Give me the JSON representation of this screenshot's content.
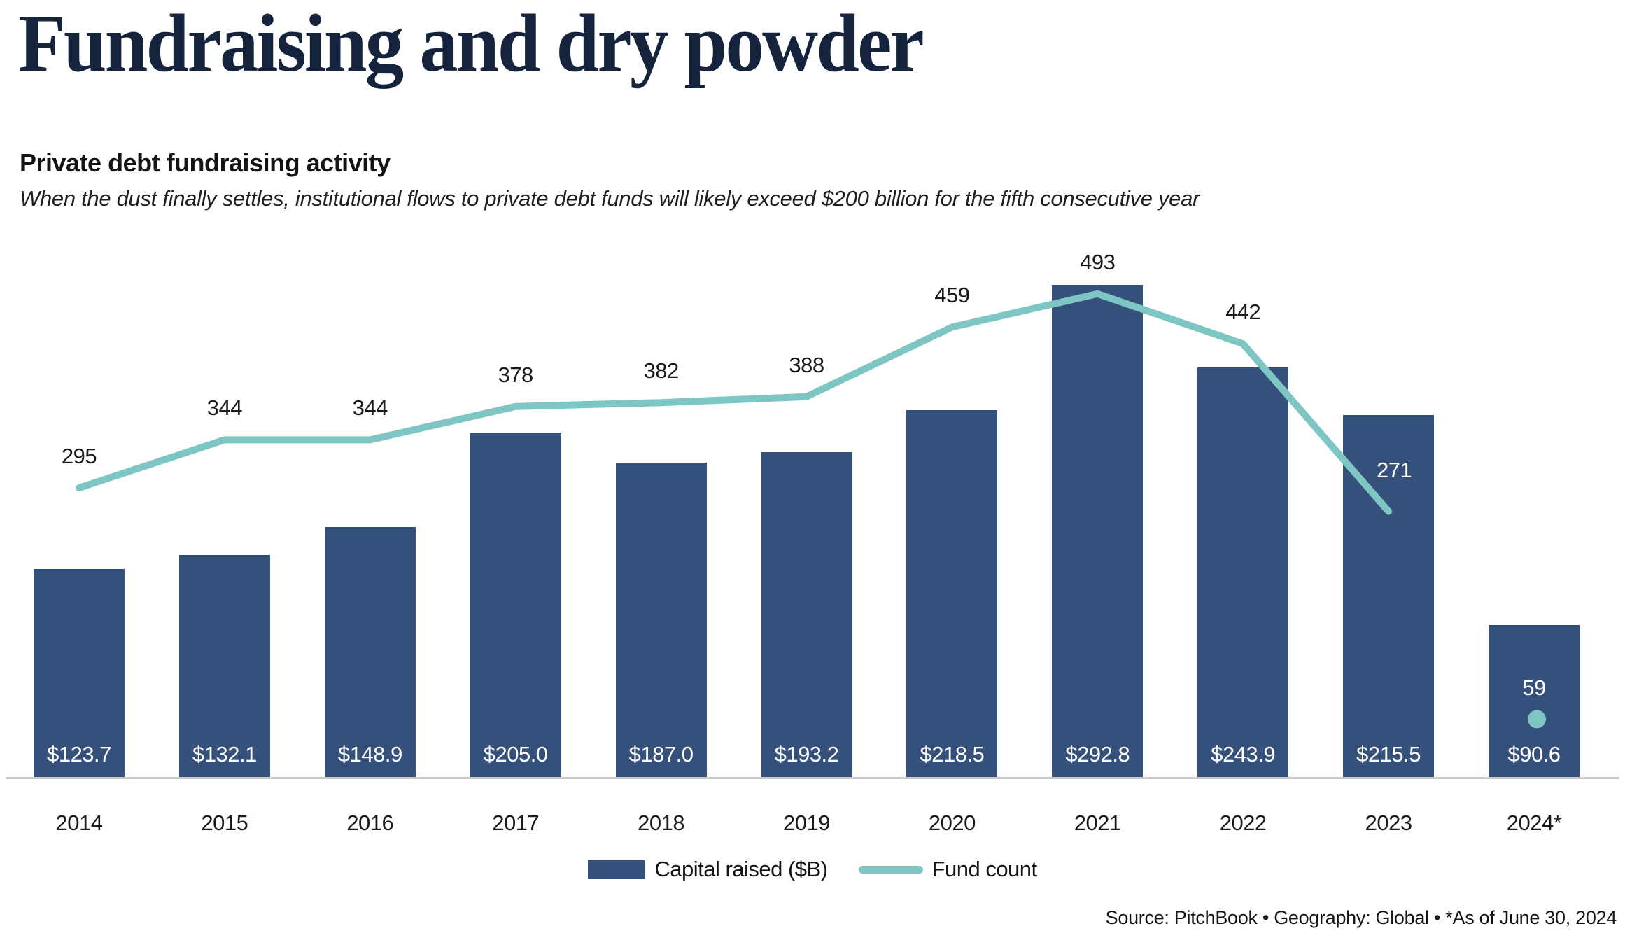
{
  "header": {
    "title": "Fundraising and dry powder",
    "subtitle": "Private debt fundraising activity",
    "description": "When the dust finally settles, institutional flows to private debt funds will likely exceed $200 billion for the fifth consecutive year"
  },
  "chart_data": {
    "type": "combo",
    "title": "Private debt fundraising activity",
    "categories": [
      "2014",
      "2015",
      "2016",
      "2017",
      "2018",
      "2019",
      "2020",
      "2021",
      "2022",
      "2023",
      "2024*"
    ],
    "series": [
      {
        "name": "Capital raised ($B)",
        "type": "bar",
        "color": "#35517B",
        "values": [
          123.7,
          132.1,
          148.9,
          205.0,
          187.0,
          193.2,
          218.5,
          292.8,
          243.9,
          215.5,
          90.6
        ],
        "value_labels": [
          "$123.7",
          "$132.1",
          "$148.9",
          "$205.0",
          "$187.0",
          "$193.2",
          "$218.5",
          "$292.8",
          "$243.9",
          "$215.5",
          "$90.6"
        ]
      },
      {
        "name": "Fund count",
        "type": "line",
        "color": "#7EC6C3",
        "last_point_style": "dot",
        "values": [
          295,
          344,
          344,
          378,
          382,
          388,
          459,
          493,
          442,
          271,
          59
        ],
        "value_labels": [
          "295",
          "344",
          "344",
          "378",
          "382",
          "388",
          "459",
          "493",
          "442",
          "271",
          "59"
        ]
      }
    ],
    "legend_position": "bottom",
    "axes_hidden": true,
    "baseline_color": "#C9C9C9",
    "bar_label_color": "#FFFFFF",
    "line_label_color": "#1A1A1A"
  },
  "legend": {
    "items": [
      {
        "label": "Capital raised ($B)",
        "swatch": "bar",
        "color": "#35517B"
      },
      {
        "label": "Fund count",
        "swatch": "line",
        "color": "#7EC6C3"
      }
    ]
  },
  "footer": {
    "source": "Source: PitchBook  •  Geography: Global  •  *As of June 30, 2024"
  }
}
